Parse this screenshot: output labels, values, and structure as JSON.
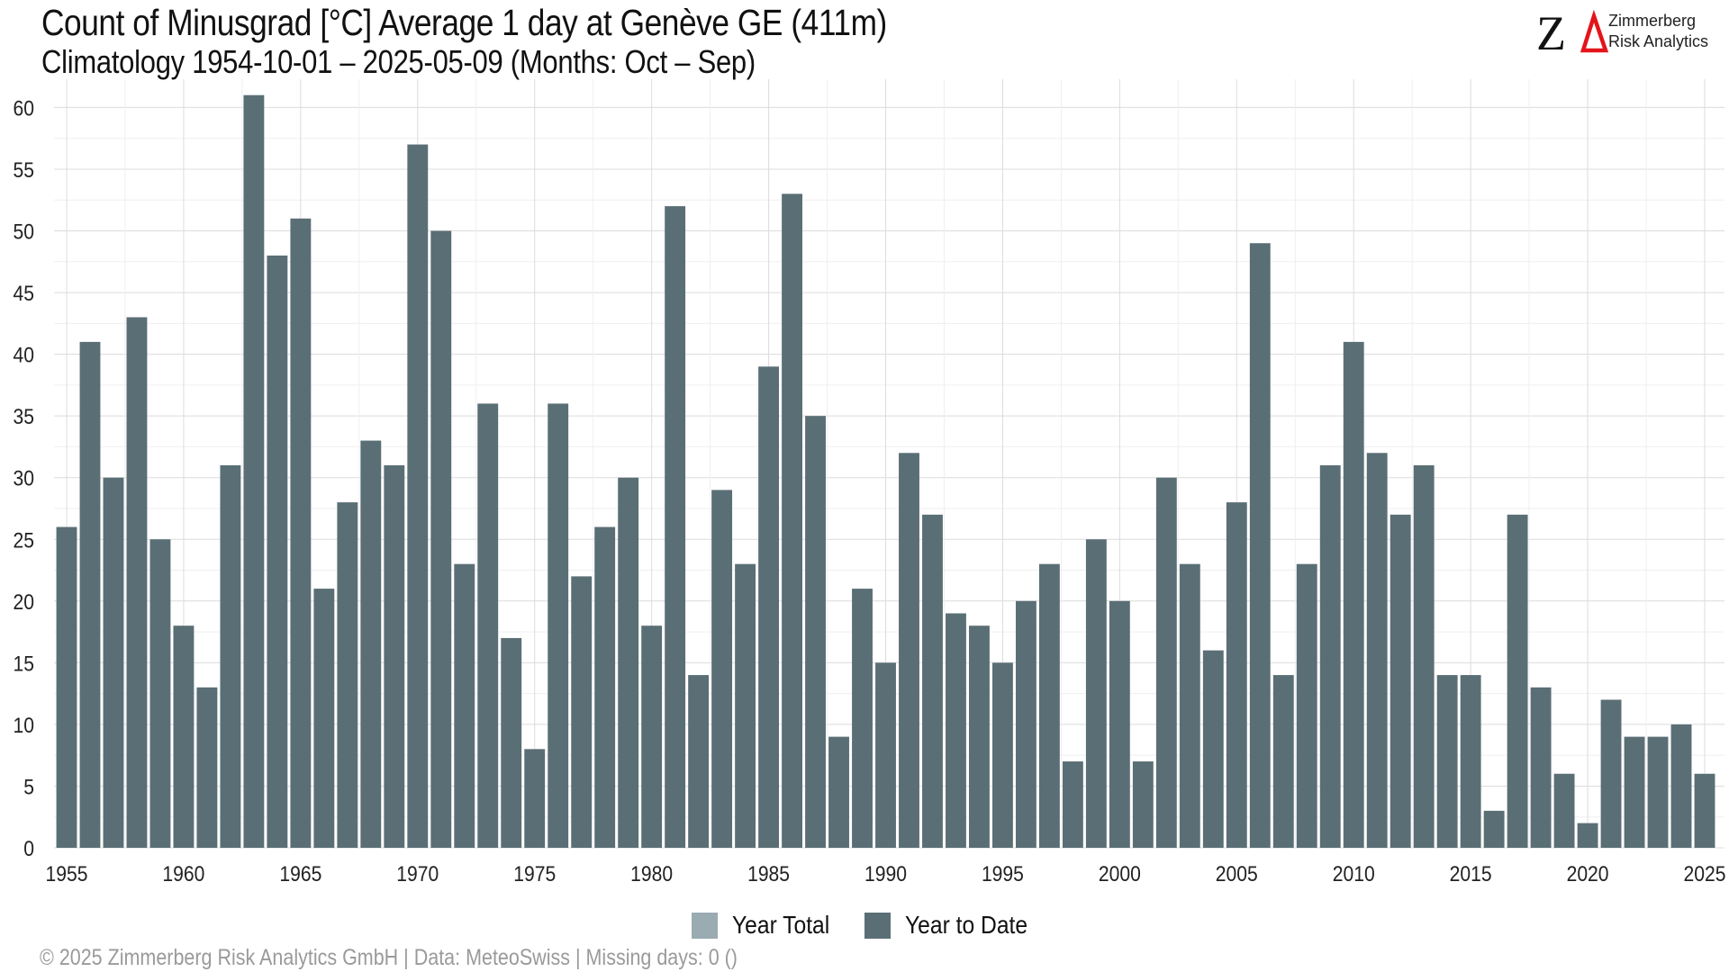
{
  "header": {
    "title": "Count of Minusgrad [°C] Average 1 day at Genève  GE (411m)",
    "subtitle": "Climatology 1954-10-01 – 2025-05-09 (Months: Oct – Sep)"
  },
  "logo": {
    "line1": "Zimmerberg",
    "line2": "Risk Analytics",
    "accent_color": "#e3151a"
  },
  "footer": {
    "text": "©  2025 Zimmerberg Risk Analytics GmbH | Data: MeteoSwiss | Missing days: 0 ()"
  },
  "chart_data": {
    "type": "bar",
    "title": "Count of Minusgrad [°C] Average 1 day at Genève  GE (411m)",
    "subtitle": "Climatology 1954-10-01 – 2025-05-09 (Months: Oct – Sep)",
    "xlabel": "",
    "ylabel": "",
    "ylim": [
      0,
      62
    ],
    "y_ticks": [
      0,
      5,
      10,
      15,
      20,
      25,
      30,
      35,
      40,
      45,
      50,
      55,
      60
    ],
    "x_ticks": [
      1955,
      1960,
      1965,
      1970,
      1975,
      1980,
      1985,
      1990,
      1995,
      2000,
      2005,
      2010,
      2015,
      2020,
      2025
    ],
    "grid": true,
    "legend_position": "bottom",
    "legend": [
      {
        "name": "Year Total",
        "color": "#9aabb1"
      },
      {
        "name": "Year to Date",
        "color": "#5a6e75"
      }
    ],
    "categories": [
      1955,
      1956,
      1957,
      1958,
      1959,
      1960,
      1961,
      1962,
      1963,
      1964,
      1965,
      1966,
      1967,
      1968,
      1969,
      1970,
      1971,
      1972,
      1973,
      1974,
      1975,
      1976,
      1977,
      1978,
      1979,
      1980,
      1981,
      1982,
      1983,
      1984,
      1985,
      1986,
      1987,
      1988,
      1989,
      1990,
      1991,
      1992,
      1993,
      1994,
      1995,
      1996,
      1997,
      1998,
      1999,
      2000,
      2001,
      2002,
      2003,
      2004,
      2005,
      2006,
      2007,
      2008,
      2009,
      2010,
      2011,
      2012,
      2013,
      2014,
      2015,
      2016,
      2017,
      2018,
      2019,
      2020,
      2021,
      2022,
      2023,
      2024,
      2025
    ],
    "series": [
      {
        "name": "Year to Date",
        "color": "#5a6e75",
        "values": [
          26,
          41,
          30,
          43,
          25,
          18,
          13,
          31,
          61,
          48,
          51,
          21,
          28,
          33,
          31,
          57,
          50,
          23,
          36,
          17,
          8,
          36,
          22,
          26,
          30,
          18,
          52,
          14,
          29,
          23,
          39,
          53,
          35,
          9,
          21,
          15,
          32,
          27,
          19,
          18,
          15,
          20,
          23,
          7,
          25,
          20,
          7,
          30,
          23,
          16,
          28,
          49,
          14,
          23,
          31,
          41,
          32,
          27,
          31,
          14,
          14,
          3,
          27,
          13,
          6,
          2,
          12,
          9,
          9,
          10,
          6
        ]
      }
    ]
  }
}
